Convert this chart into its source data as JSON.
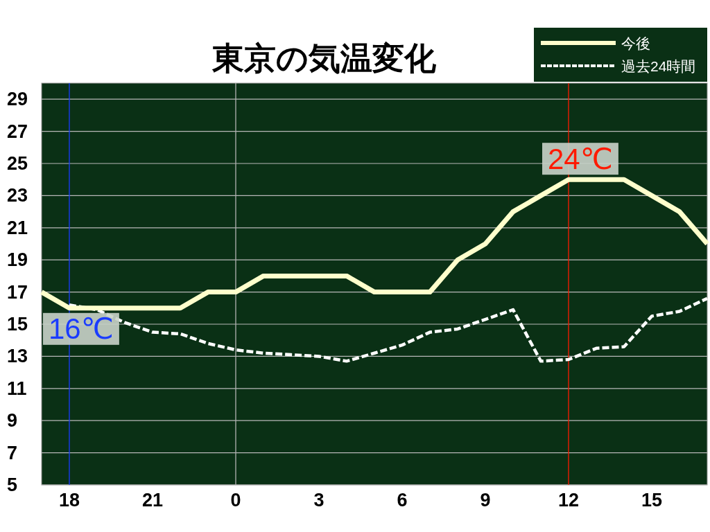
{
  "chart_data": {
    "type": "line",
    "title": "東京の気温変化",
    "categories": [
      null,
      "18",
      null,
      null,
      "21",
      null,
      null,
      "0",
      null,
      null,
      "3",
      null,
      null,
      "6",
      null,
      null,
      "9",
      null,
      null,
      "12",
      null,
      null,
      "15",
      null,
      null
    ],
    "series": [
      {
        "name": "今後",
        "color": "#ffffcc",
        "line_style": "solid",
        "values": [
          17,
          16,
          16,
          16,
          16,
          16,
          17,
          17,
          18,
          18,
          18,
          18,
          17,
          17,
          17,
          19,
          20,
          22,
          23,
          24,
          24,
          24,
          23,
          22,
          20
        ]
      },
      {
        "name": "過去24時間",
        "color": "#ffffff",
        "line_style": "dashed",
        "values": [
          null,
          16.2,
          15.9,
          15.1,
          14.5,
          14.4,
          13.8,
          13.4,
          13.2,
          13.1,
          13.0,
          12.7,
          13.2,
          13.7,
          14.5,
          14.7,
          15.3,
          15.9,
          12.7,
          12.8,
          13.5,
          13.6,
          15.5,
          15.8,
          16.6
        ]
      }
    ],
    "ylim": [
      5,
      30
    ],
    "yticks": [
      5,
      7,
      9,
      11,
      13,
      15,
      17,
      19,
      21,
      23,
      25,
      27,
      29
    ],
    "ref_lines": [
      {
        "axis": "x",
        "value": "0",
        "color": "#b4b4b4"
      },
      {
        "axis": "x",
        "value": "18",
        "color": "#1a3cff"
      },
      {
        "axis": "x",
        "value": "12",
        "color": "#ff1a00"
      }
    ],
    "annotations": [
      {
        "text": "16℃",
        "x": "18",
        "y": 16
      },
      {
        "text": "24℃",
        "x": "12",
        "y": 24
      }
    ],
    "grid": "y",
    "legend": "top right"
  }
}
